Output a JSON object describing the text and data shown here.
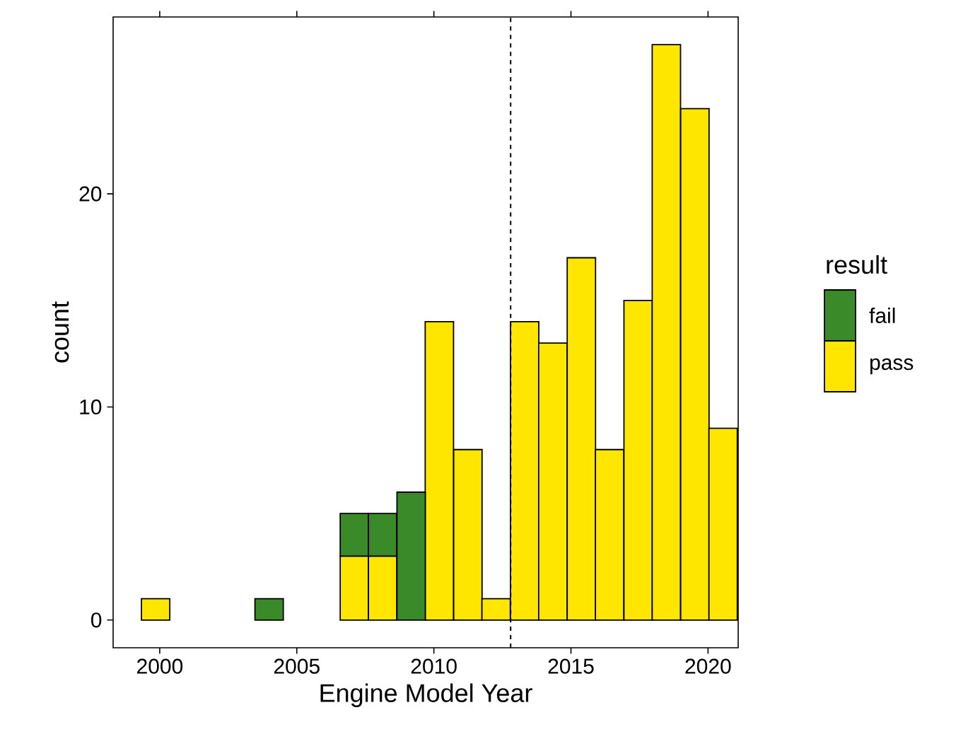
{
  "chart_data": {
    "type": "bar",
    "xlabel": "Engine Model Year",
    "ylabel": "count",
    "legend_title": "result",
    "stacked": true,
    "x": [
      1999.85,
      2000.89,
      2001.92,
      2002.96,
      2003.99,
      2005.03,
      2006.06,
      2007.1,
      2008.13,
      2009.17,
      2010.2,
      2011.24,
      2012.27,
      2013.31,
      2014.34,
      2015.38,
      2016.41,
      2017.45,
      2018.48,
      2019.52,
      2020.55
    ],
    "series": [
      {
        "name": "pass",
        "color": "#ffe600",
        "values": [
          1,
          0,
          0,
          0,
          0,
          0,
          0,
          3,
          3,
          0,
          14,
          8,
          1,
          14,
          13,
          17,
          8,
          15,
          27,
          24,
          9
        ]
      },
      {
        "name": "fail",
        "color": "#3a8a2a",
        "values": [
          0,
          0,
          0,
          0,
          1,
          0,
          0,
          2,
          2,
          6,
          0,
          0,
          0,
          0,
          0,
          0,
          0,
          0,
          0,
          0,
          0
        ]
      }
    ],
    "xlim": [
      1998.3,
      2021.1
    ],
    "ylim": [
      -1.3,
      28.3
    ],
    "xticks": [
      2000,
      2005,
      2010,
      2015,
      2020
    ],
    "yticks": [
      0,
      10,
      20
    ],
    "ref_lines": [
      {
        "axis": "x",
        "value": 2012.8,
        "line_style": "dashed"
      }
    ],
    "legend": "right"
  }
}
